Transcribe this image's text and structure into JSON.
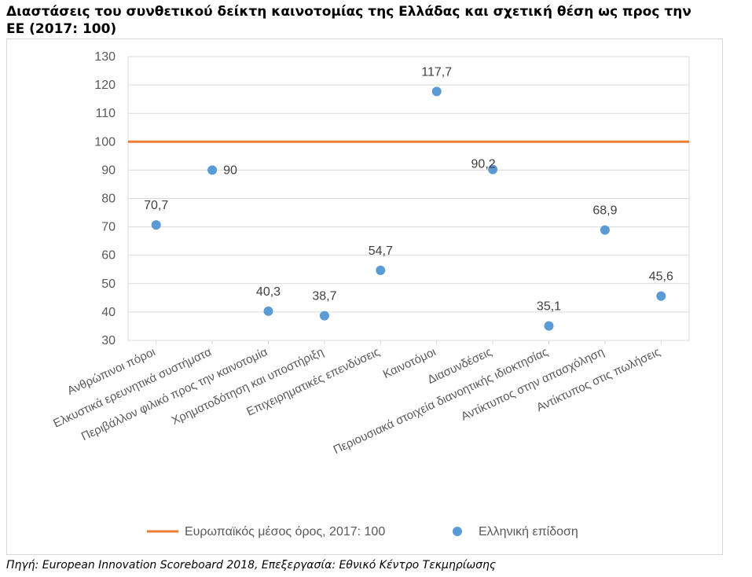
{
  "title": "Διαστάσεις του συνθετικού δείκτη καινοτομίας της Ελλάδας και σχετική θέση ως προς την ΕΕ (2017: 100)",
  "source": "Πηγή: European Innovation Scoreboard 2018, Επεξεργασία: Εθνικό Κέντρο Τεκμηρίωσης",
  "colors": {
    "series_greece": "#5b9bd5",
    "series_eu": "#ed7d31",
    "grid": "#d9d9d9",
    "axis_text": "#595959"
  },
  "chart_data": {
    "type": "scatter",
    "categories": [
      "Ανθρώπινοι πόροι",
      "Ελκυστικά ερευνητικά συστήματα",
      "Περιβάλλον φιλικό προς την καινοτομία",
      "Χρηματοδότηση και υποστήριξη",
      "Επιχειρηματικές επενδύσεις",
      "Καινοτόμοι",
      "Διασυνδέσεις",
      "Περιουσιακά στοιχεία διανοητικής ιδιοκτησίας",
      "Αντίκτυπος στην απασχόληση",
      "Αντίκτυπος στις πωλήσεις"
    ],
    "series": [
      {
        "name": "Ελληνική επίδοση",
        "values": [
          70.7,
          90,
          40.3,
          38.7,
          54.7,
          117.7,
          90.2,
          35.1,
          68.9,
          45.6
        ],
        "labels": [
          "70,7",
          "90",
          "40,3",
          "38,7",
          "54,7",
          "117,7",
          "90,2",
          "35,1",
          "68,9",
          "45,6"
        ]
      },
      {
        "name": "Ευρωπαϊκός μέσος όρος, 2017: 100",
        "values": [
          100,
          100,
          100,
          100,
          100,
          100,
          100,
          100,
          100,
          100
        ]
      }
    ],
    "ylim": [
      30,
      130
    ],
    "yticks": [
      "30",
      "40",
      "50",
      "60",
      "70",
      "80",
      "90",
      "100",
      "110",
      "120",
      "130"
    ],
    "grid": true,
    "legend_position": "bottom"
  }
}
